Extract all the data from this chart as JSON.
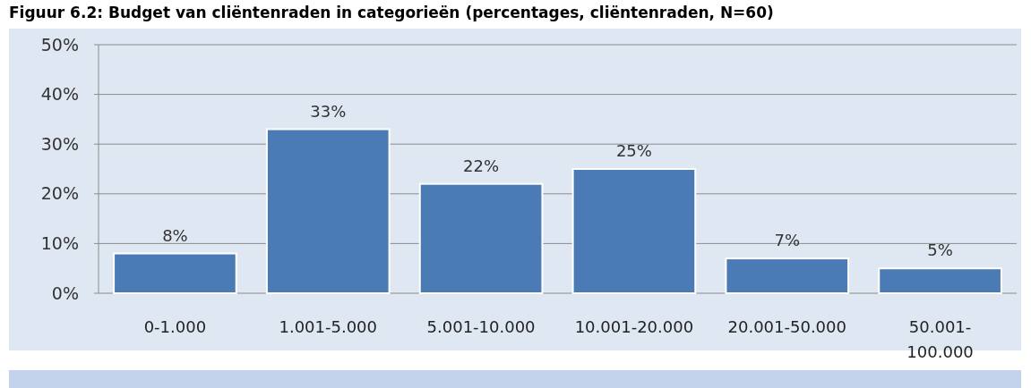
{
  "chart_data": {
    "type": "bar",
    "title": "Figuur 6.2: Budget van cliëntenraden in categorieën (percentages, cliëntenraden, N=60)",
    "categories": [
      "0-1.000",
      "1.001-5.000",
      "5.001-10.000",
      "10.001-20.000",
      "20.001-50.000",
      "50.001-100.000"
    ],
    "values": [
      8,
      33,
      22,
      25,
      7,
      5
    ],
    "color": "#4a7bb5",
    "ylim": [
      0,
      50
    ],
    "yticks": [
      {
        "value": 0,
        "label": "0%"
      },
      {
        "value": 10,
        "label": "10%"
      },
      {
        "value": 20,
        "label": "20%"
      },
      {
        "value": 30,
        "label": "30%"
      },
      {
        "value": 40,
        "label": "40%"
      },
      {
        "value": 50,
        "label": "50%"
      }
    ],
    "value_labels": [
      "8%",
      "33%",
      "22%",
      "25%",
      "7%",
      "5%"
    ],
    "grid": "y"
  }
}
